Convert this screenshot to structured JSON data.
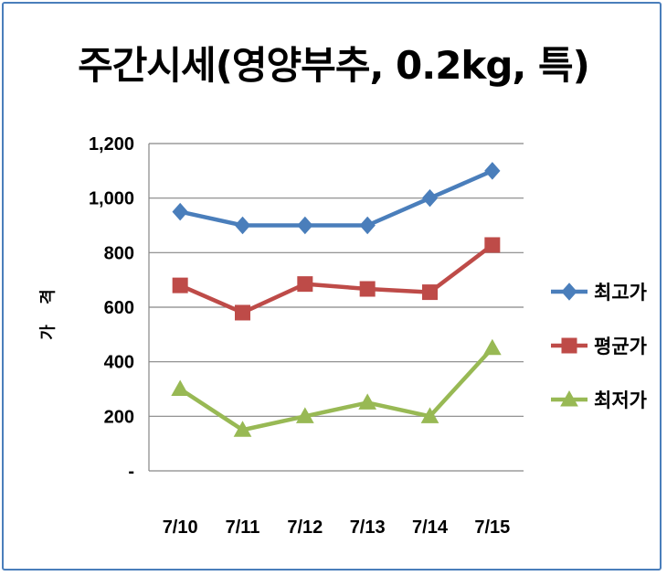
{
  "chart_data": {
    "type": "line",
    "title": "주간시세(영양부추, 0.2kg, 특)",
    "xlabel": "",
    "ylabel": "가 격",
    "categories": [
      "7/10",
      "7/11",
      "7/12",
      "7/13",
      "7/14",
      "7/15"
    ],
    "ylim": [
      0,
      1200
    ],
    "yticks": [
      0,
      200,
      400,
      600,
      800,
      1000,
      1200
    ],
    "ytick_labels": [
      "-",
      "200",
      "400",
      "600",
      "800",
      "1,000",
      "1,200"
    ],
    "grid": true,
    "legend_position": "right",
    "series": [
      {
        "name": "최고가",
        "values": [
          950,
          900,
          900,
          900,
          1000,
          1100
        ],
        "color": "#4a7ebb",
        "marker": "diamond"
      },
      {
        "name": "평균가",
        "values": [
          680,
          580,
          685,
          667,
          655,
          828
        ],
        "color": "#be4b48",
        "marker": "square"
      },
      {
        "name": "최저가",
        "values": [
          300,
          150,
          200,
          250,
          200,
          450
        ],
        "color": "#98b954",
        "marker": "triangle"
      }
    ]
  }
}
